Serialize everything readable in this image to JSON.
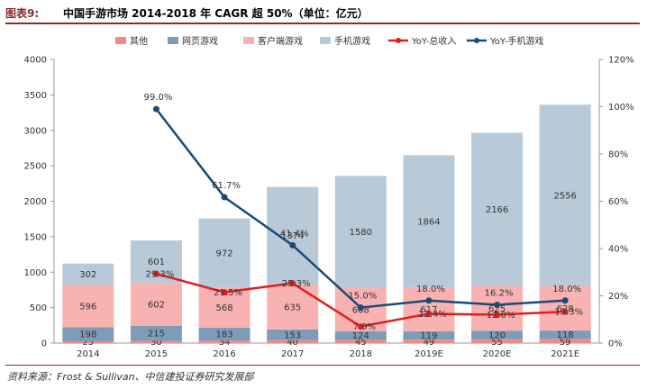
{
  "figure": {
    "label": "图表9:",
    "title": "中国手游市场 2014-2018 年 CAGR 超 50%（单位：亿元）",
    "source": "资料来源：Frost & Sullivan、中信建投证券研究发展部"
  },
  "chart_data": {
    "type": "bar",
    "stacked": true,
    "categories": [
      "2014",
      "2015",
      "2016",
      "2017",
      "2018",
      "2019E",
      "2020E",
      "2021E"
    ],
    "series": [
      {
        "name": "其他",
        "color": "#f08a8a",
        "values": [
          25,
          30,
          34,
          40,
          45,
          49,
          55,
          59
        ]
      },
      {
        "name": "网页游戏",
        "color": "#7d9cb8",
        "values": [
          198,
          215,
          183,
          153,
          124,
          119,
          120,
          118
        ]
      },
      {
        "name": "客户端游戏",
        "color": "#f8b2b2",
        "values": [
          596,
          602,
          568,
          635,
          608,
          617,
          625,
          628
        ]
      },
      {
        "name": "手机游戏",
        "color": "#b8cad8",
        "values": [
          302,
          601,
          972,
          1374,
          1580,
          1864,
          2166,
          2556
        ]
      }
    ],
    "lines": [
      {
        "name": "YoY-总收入",
        "color": "#e02020",
        "axis": "right",
        "values": [
          null,
          29.3,
          21.5,
          25.3,
          7.0,
          12.4,
          12.0,
          13.3
        ],
        "labels": [
          null,
          "29.3%",
          "21.5%",
          "25.3%",
          "7.0%",
          "12.4%",
          "12.0%",
          "13.3%"
        ]
      },
      {
        "name": "YoY-手机游戏",
        "color": "#1a4a78",
        "axis": "right",
        "values": [
          null,
          99.0,
          61.7,
          41.4,
          15.0,
          18.0,
          16.2,
          18.0
        ],
        "labels": [
          null,
          "99.0%",
          "61.7%",
          "41.4%",
          "15.0%",
          "18.0%",
          "16.2%",
          "18.0%"
        ]
      }
    ],
    "ylim_left": [
      0,
      4000
    ],
    "yticks_left": [
      "0",
      "500",
      "1000",
      "1500",
      "2000",
      "2500",
      "3000",
      "3500",
      "4000"
    ],
    "ylim_right": [
      0,
      120
    ],
    "yticks_right": [
      "0%",
      "20%",
      "40%",
      "60%",
      "80%",
      "100%",
      "120%"
    ],
    "legend_position": "top"
  }
}
